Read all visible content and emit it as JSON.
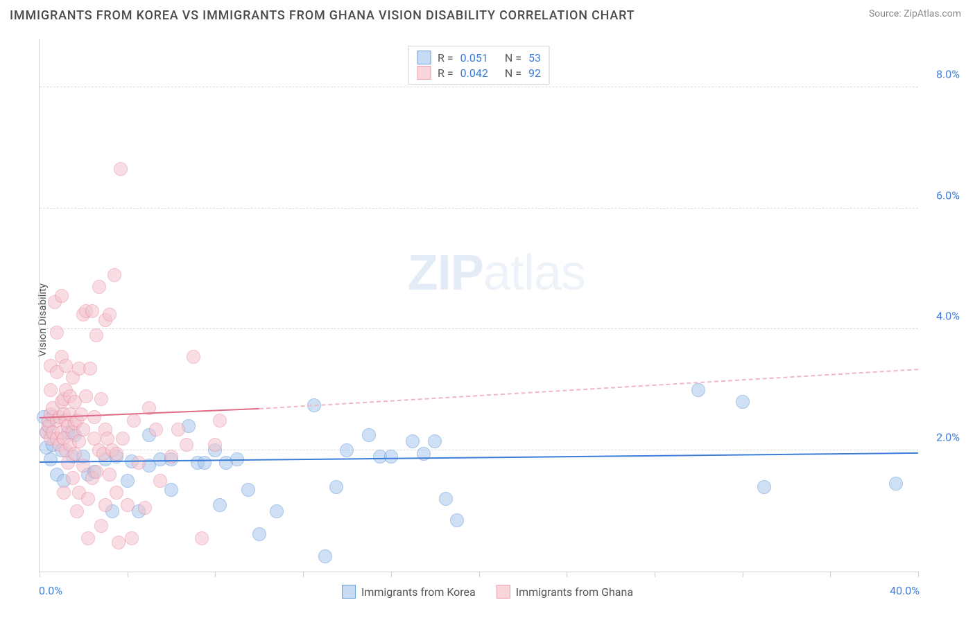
{
  "header": {
    "title": "IMMIGRANTS FROM KOREA VS IMMIGRANTS FROM GHANA VISION DISABILITY CORRELATION CHART",
    "source_label": "Source:",
    "source_value": "ZipAtlas.com"
  },
  "chart": {
    "type": "scatter",
    "ylabel": "Vision Disability",
    "background_color": "#ffffff",
    "grid_color": "#d9d9d9",
    "axis_color": "#cfcfcf",
    "label_color": "#3b7dd8",
    "xlim": [
      0,
      40
    ],
    "ylim": [
      0,
      8.8
    ],
    "x_tick_positions": [
      0,
      4,
      8,
      12,
      16,
      20,
      24,
      28,
      32,
      36,
      40
    ],
    "x_start_label": "0.0%",
    "x_end_label": "40.0%",
    "y_grid": [
      {
        "value": 2.0,
        "label": "2.0%"
      },
      {
        "value": 4.0,
        "label": "4.0%"
      },
      {
        "value": 6.0,
        "label": "6.0%"
      },
      {
        "value": 8.0,
        "label": "8.0%"
      }
    ],
    "marker_radius": 10,
    "marker_opacity": 0.55,
    "watermark": {
      "bold": "ZIP",
      "rest": "atlas"
    }
  },
  "series": [
    {
      "key": "korea",
      "label": "Immigrants from Korea",
      "color_fill": "#a9c8ee",
      "color_stroke": "#5f96d9",
      "swatch_fill": "#c7dbf3",
      "swatch_border": "#6a9fde",
      "stats": {
        "r_label": "R =",
        "r_value": "0.051",
        "n_label": "N =",
        "n_value": "53"
      },
      "trend": {
        "solid_color": "#3b7dd8",
        "dash_color": "#3b7dd8",
        "width": 2.5,
        "x_solid_start": 0,
        "y_solid_start": 1.82,
        "x_solid_end": 40,
        "y_solid_end": 1.97,
        "x_dash_start": 40,
        "y_dash_start": 1.97,
        "x_dash_end": 40,
        "y_dash_end": 1.97
      },
      "points": [
        [
          0.2,
          2.55
        ],
        [
          0.3,
          2.05
        ],
        [
          0.3,
          2.3
        ],
        [
          0.4,
          2.4
        ],
        [
          0.5,
          1.85
        ],
        [
          0.6,
          2.55
        ],
        [
          0.6,
          2.1
        ],
        [
          0.8,
          1.6
        ],
        [
          1.0,
          2.0
        ],
        [
          1.1,
          1.5
        ],
        [
          1.3,
          2.3
        ],
        [
          1.5,
          1.9
        ],
        [
          1.6,
          2.25
        ],
        [
          2.0,
          1.9
        ],
        [
          2.2,
          1.6
        ],
        [
          2.5,
          1.65
        ],
        [
          3.0,
          1.85
        ],
        [
          3.3,
          1.0
        ],
        [
          3.5,
          1.9
        ],
        [
          4.0,
          1.5
        ],
        [
          4.2,
          1.82
        ],
        [
          4.5,
          1.0
        ],
        [
          5.0,
          2.25
        ],
        [
          5.0,
          1.75
        ],
        [
          5.5,
          1.85
        ],
        [
          6.0,
          1.85
        ],
        [
          6.0,
          1.35
        ],
        [
          6.8,
          2.4
        ],
        [
          7.2,
          1.8
        ],
        [
          7.5,
          1.8
        ],
        [
          8.0,
          2.0
        ],
        [
          8.2,
          1.1
        ],
        [
          8.5,
          1.8
        ],
        [
          9.0,
          1.85
        ],
        [
          9.5,
          1.35
        ],
        [
          10.0,
          0.62
        ],
        [
          10.8,
          1.0
        ],
        [
          12.5,
          2.75
        ],
        [
          13.0,
          0.25
        ],
        [
          13.5,
          1.4
        ],
        [
          14.0,
          2.0
        ],
        [
          15.0,
          2.25
        ],
        [
          15.5,
          1.9
        ],
        [
          16.0,
          1.9
        ],
        [
          17.0,
          2.15
        ],
        [
          17.5,
          1.95
        ],
        [
          18.0,
          2.15
        ],
        [
          18.5,
          1.2
        ],
        [
          19.0,
          0.85
        ],
        [
          30.0,
          3.0
        ],
        [
          32.0,
          2.8
        ],
        [
          33.0,
          1.4
        ],
        [
          39.0,
          1.45
        ]
      ]
    },
    {
      "key": "ghana",
      "label": "Immigrants from Ghana",
      "color_fill": "#f4c4ce",
      "color_stroke": "#e88ba0",
      "swatch_fill": "#f8d4db",
      "swatch_border": "#ec9fb0",
      "stats": {
        "r_label": "R =",
        "r_value": "0.042",
        "n_label": "N =",
        "n_value": "92"
      },
      "trend": {
        "solid_color": "#e06b87",
        "dash_color": "#f0b7c3",
        "width": 2.5,
        "x_solid_start": 0,
        "y_solid_start": 2.55,
        "x_solid_end": 10,
        "y_solid_end": 2.7,
        "x_dash_start": 10,
        "y_dash_start": 2.7,
        "x_dash_end": 40,
        "y_dash_end": 3.35
      },
      "points": [
        [
          0.3,
          2.3
        ],
        [
          0.4,
          2.4
        ],
        [
          0.4,
          2.5
        ],
        [
          0.5,
          2.6
        ],
        [
          0.5,
          2.2
        ],
        [
          0.5,
          3.0
        ],
        [
          0.5,
          3.4
        ],
        [
          0.6,
          2.3
        ],
        [
          0.6,
          2.7
        ],
        [
          0.7,
          4.45
        ],
        [
          0.8,
          2.5
        ],
        [
          0.8,
          2.2
        ],
        [
          0.8,
          3.3
        ],
        [
          0.8,
          3.95
        ],
        [
          0.9,
          2.55
        ],
        [
          0.9,
          2.1
        ],
        [
          1.0,
          2.3
        ],
        [
          1.0,
          2.8
        ],
        [
          1.0,
          3.55
        ],
        [
          1.0,
          4.55
        ],
        [
          1.1,
          2.6
        ],
        [
          1.1,
          2.85
        ],
        [
          1.1,
          2.2
        ],
        [
          1.1,
          1.3
        ],
        [
          1.2,
          2.5
        ],
        [
          1.2,
          2.0
        ],
        [
          1.2,
          3.0
        ],
        [
          1.2,
          3.4
        ],
        [
          1.3,
          2.4
        ],
        [
          1.3,
          1.8
        ],
        [
          1.4,
          2.6
        ],
        [
          1.4,
          2.9
        ],
        [
          1.4,
          2.1
        ],
        [
          1.5,
          2.3
        ],
        [
          1.5,
          1.55
        ],
        [
          1.5,
          3.2
        ],
        [
          1.6,
          2.45
        ],
        [
          1.6,
          2.8
        ],
        [
          1.6,
          1.95
        ],
        [
          1.7,
          2.5
        ],
        [
          1.7,
          1.0
        ],
        [
          1.8,
          3.35
        ],
        [
          1.8,
          1.3
        ],
        [
          1.8,
          2.15
        ],
        [
          1.9,
          2.6
        ],
        [
          2.0,
          4.25
        ],
        [
          2.0,
          2.35
        ],
        [
          2.0,
          1.75
        ],
        [
          2.1,
          2.9
        ],
        [
          2.1,
          4.3
        ],
        [
          2.2,
          1.2
        ],
        [
          2.2,
          0.55
        ],
        [
          2.3,
          3.35
        ],
        [
          2.4,
          4.3
        ],
        [
          2.4,
          1.55
        ],
        [
          2.5,
          2.2
        ],
        [
          2.5,
          2.55
        ],
        [
          2.6,
          3.9
        ],
        [
          2.6,
          1.65
        ],
        [
          2.7,
          2.0
        ],
        [
          2.7,
          4.7
        ],
        [
          2.8,
          2.85
        ],
        [
          2.8,
          0.75
        ],
        [
          2.9,
          1.95
        ],
        [
          3.0,
          2.35
        ],
        [
          3.0,
          4.15
        ],
        [
          3.0,
          1.1
        ],
        [
          3.1,
          2.2
        ],
        [
          3.2,
          4.25
        ],
        [
          3.2,
          1.6
        ],
        [
          3.3,
          2.0
        ],
        [
          3.4,
          4.9
        ],
        [
          3.5,
          1.95
        ],
        [
          3.5,
          1.3
        ],
        [
          3.6,
          0.48
        ],
        [
          3.7,
          6.65
        ],
        [
          3.8,
          2.2
        ],
        [
          4.0,
          1.1
        ],
        [
          4.2,
          0.55
        ],
        [
          4.3,
          2.5
        ],
        [
          4.5,
          1.8
        ],
        [
          4.8,
          1.05
        ],
        [
          5.0,
          2.7
        ],
        [
          5.3,
          2.35
        ],
        [
          5.5,
          1.5
        ],
        [
          6.0,
          1.9
        ],
        [
          6.3,
          2.35
        ],
        [
          6.7,
          2.1
        ],
        [
          7.0,
          3.55
        ],
        [
          7.4,
          0.55
        ],
        [
          8.0,
          2.1
        ],
        [
          8.2,
          2.5
        ]
      ]
    }
  ],
  "legend": {
    "items": [
      {
        "series": "korea"
      },
      {
        "series": "ghana"
      }
    ]
  }
}
